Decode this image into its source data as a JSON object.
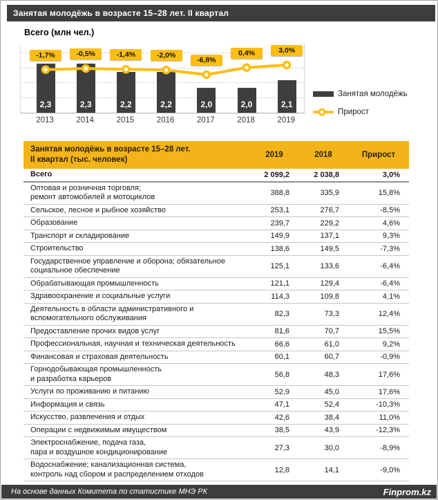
{
  "title_bar": {
    "text": "Занятая  молодёжь в возрасте 15–28 лет. II квартал"
  },
  "chart_data": {
    "type": "bar",
    "title": "Всего (млн чел.)",
    "categories": [
      "2013",
      "2014",
      "2015",
      "2016",
      "2017",
      "2018",
      "2019"
    ],
    "series": [
      {
        "name": "Занятая молодёжь",
        "type": "bar",
        "unit": "млн чел.",
        "values": [
          2.3,
          2.3,
          2.2,
          2.2,
          2.0,
          2.0,
          2.1
        ],
        "labels": [
          "2,3",
          "2,3",
          "2,2",
          "2,2",
          "2,0",
          "2,0",
          "2,1"
        ]
      },
      {
        "name": "Прирост",
        "type": "line",
        "unit": "%",
        "values": [
          -1.7,
          -0.5,
          -1.4,
          -2.0,
          -6.8,
          0.4,
          3.0
        ],
        "labels": [
          "-1,7%",
          "-0,5%",
          "-1,4%",
          "-2,0%",
          "-6,8%",
          "0,4%",
          "3,0%"
        ]
      }
    ],
    "ylim": [
      1.7,
      2.55
    ],
    "grid": true,
    "legend_position": "right"
  },
  "colors": {
    "dark": "#3d3d3d",
    "bar": "#3e3e3e",
    "gold": "#fdbe14",
    "table_header_gold": "#f2b31b"
  },
  "table": {
    "header": {
      "title_line1": "Занятая молодёжь в возрасте 15–28 лет.",
      "title_line2": "II квартал (тыс. человек)",
      "col_2019": "2019",
      "col_2018": "2018",
      "col_growth": "Прирост"
    },
    "rows": [
      {
        "lines": [
          "Всего"
        ],
        "v2019": "2 099,2",
        "v2018": "2 038,8",
        "growth": "3,0%",
        "total": true
      },
      {
        "lines": [
          "Оптовая и розничная торговля;",
          "ремонт автомобилей и мотоциклов"
        ],
        "v2019": "388,8",
        "v2018": "335,9",
        "growth": "15,8%"
      },
      {
        "lines": [
          "Сельское, лесное и рыбное хозяйство"
        ],
        "v2019": "253,1",
        "v2018": "276,7",
        "growth": "-8,5%"
      },
      {
        "lines": [
          "Образование"
        ],
        "v2019": "239,7",
        "v2018": "229,2",
        "growth": "4,6%"
      },
      {
        "lines": [
          "Транспорт и складирование"
        ],
        "v2019": "149,9",
        "v2018": "137,1",
        "growth": "9,3%"
      },
      {
        "lines": [
          "Строительство"
        ],
        "v2019": "138,6",
        "v2018": "149,5",
        "growth": "-7,3%"
      },
      {
        "lines": [
          "Государственное управление и оборона; обязательное",
          "социальное обеспечение"
        ],
        "v2019": "125,1",
        "v2018": "133,6",
        "growth": "-6,4%"
      },
      {
        "lines": [
          "Обрабатывающая промышленность"
        ],
        "v2019": "121,1",
        "v2018": "129,4",
        "growth": "-6,4%"
      },
      {
        "lines": [
          "Здравоохранение и социальные услуги"
        ],
        "v2019": "114,3",
        "v2018": "109,8",
        "growth": "4,1%"
      },
      {
        "lines": [
          "Деятельность в области административного и",
          "вспомогательного обслуживания"
        ],
        "v2019": "82,3",
        "v2018": "73,3",
        "growth": "12,4%"
      },
      {
        "lines": [
          "Предоставление прочих видов услуг"
        ],
        "v2019": "81,6",
        "v2018": "70,7",
        "growth": "15,5%"
      },
      {
        "lines": [
          "Профессиональная, научная и техническая деятельность"
        ],
        "v2019": "66,6",
        "v2018": "61,0",
        "growth": "9,2%"
      },
      {
        "lines": [
          "Финансовая и страховая деятельность"
        ],
        "v2019": "60,1",
        "v2018": "60,7",
        "growth": "-0,9%"
      },
      {
        "lines": [
          "Горнодобывающая промышленность",
          "и разработка карьеров"
        ],
        "v2019": "56,8",
        "v2018": "48,3",
        "growth": "17,6%"
      },
      {
        "lines": [
          "Услуги по проживанию и питанию"
        ],
        "v2019": "52,9",
        "v2018": "45,0",
        "growth": "17,6%"
      },
      {
        "lines": [
          "Информация и связь"
        ],
        "v2019": "47,1",
        "v2018": "52,4",
        "growth": "-10,3%"
      },
      {
        "lines": [
          "Искусство, развлечения и отдых"
        ],
        "v2019": "42,6",
        "v2018": "38,4",
        "growth": "11,0%"
      },
      {
        "lines": [
          "Операции с недвижимым имуществом"
        ],
        "v2019": "38,5",
        "v2018": "43,9",
        "growth": "-12,3%"
      },
      {
        "lines": [
          "Электроснабжение, подача газа,",
          "пара и воздушное  кондиционирование"
        ],
        "v2019": "27,3",
        "v2018": "30,0",
        "growth": "-8,9%"
      },
      {
        "lines": [
          "Водоснабжение; канализационная система,",
          "контроль над сбором и распределением отходов"
        ],
        "v2019": "12,8",
        "v2018": "14,1",
        "growth": "-9,0%"
      }
    ]
  },
  "footer": {
    "source": "На основе данных  Комитета по статистике МНЭ РК",
    "brand": "Finprom.kz"
  }
}
